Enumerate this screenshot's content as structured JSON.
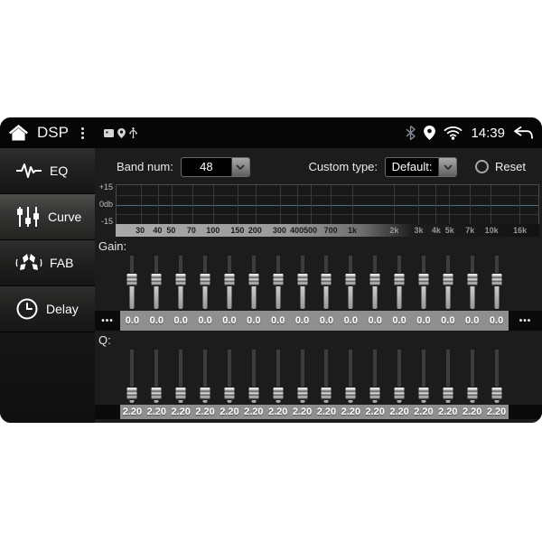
{
  "status_bar": {
    "app_title": "DSP",
    "time": "14:39"
  },
  "sidebar": {
    "items": [
      {
        "label": "EQ",
        "icon": "eq-waveform-icon",
        "active": false
      },
      {
        "label": "Curve",
        "icon": "curve-sliders-icon",
        "active": true
      },
      {
        "label": "FAB",
        "icon": "fab-speaker-icon",
        "active": false
      },
      {
        "label": "Delay",
        "icon": "delay-clock-icon",
        "active": false
      }
    ]
  },
  "controls": {
    "band_num_label": "Band num:",
    "band_num_value": "48",
    "custom_type_label": "Custom type:",
    "custom_type_value": "Default:",
    "reset_label": "Reset"
  },
  "chart_data": {
    "type": "line",
    "title": "EQ response grid",
    "x_scale": "log",
    "x_range_hz": [
      20,
      22000
    ],
    "ylim": [
      -15,
      15
    ],
    "y_ticks": [
      "+15",
      "0db",
      "-15"
    ],
    "x_ticks": [
      {
        "label": "30",
        "freq": 30
      },
      {
        "label": "40",
        "freq": 40
      },
      {
        "label": "50",
        "freq": 50
      },
      {
        "label": "70",
        "freq": 70
      },
      {
        "label": "100",
        "freq": 100
      },
      {
        "label": "150",
        "freq": 150
      },
      {
        "label": "200",
        "freq": 200
      },
      {
        "label": "300",
        "freq": 300
      },
      {
        "label": "400",
        "freq": 400
      },
      {
        "label": "500",
        "freq": 500
      },
      {
        "label": "700",
        "freq": 700
      },
      {
        "label": "1k",
        "freq": 1000
      },
      {
        "label": "2k",
        "freq": 2000
      },
      {
        "label": "3k",
        "freq": 3000
      },
      {
        "label": "4k",
        "freq": 4000
      },
      {
        "label": "5k",
        "freq": 5000
      },
      {
        "label": "7k",
        "freq": 7000
      },
      {
        "label": "10k",
        "freq": 10000
      },
      {
        "label": "16k",
        "freq": 16000
      }
    ],
    "series": [
      {
        "name": "eq-response-db",
        "x": [
          30,
          40,
          50,
          70,
          100,
          150,
          200,
          300,
          400,
          500,
          700,
          1000,
          2000,
          3000,
          4000,
          5000,
          7000,
          10000,
          16000
        ],
        "y": [
          0,
          0,
          0,
          0,
          0,
          0,
          0,
          0,
          0,
          0,
          0,
          0,
          0,
          0,
          0,
          0,
          0,
          0,
          0
        ]
      }
    ],
    "grid": true,
    "legend": false
  },
  "gain": {
    "label": "Gain:",
    "pager_dots": "•••",
    "values": [
      "0.0",
      "0.0",
      "0.0",
      "0.0",
      "0.0",
      "0.0",
      "0.0",
      "0.0",
      "0.0",
      "0.0",
      "0.0",
      "0.0",
      "0.0",
      "0.0",
      "0.0",
      "0.0"
    ]
  },
  "q": {
    "label": "Q:",
    "values": [
      "2.20",
      "2.20",
      "2.20",
      "2.20",
      "2.20",
      "2.20",
      "2.20",
      "2.20",
      "2.20",
      "2.20",
      "2.20",
      "2.20",
      "2.20",
      "2.20",
      "2.20",
      "2.20"
    ]
  }
}
